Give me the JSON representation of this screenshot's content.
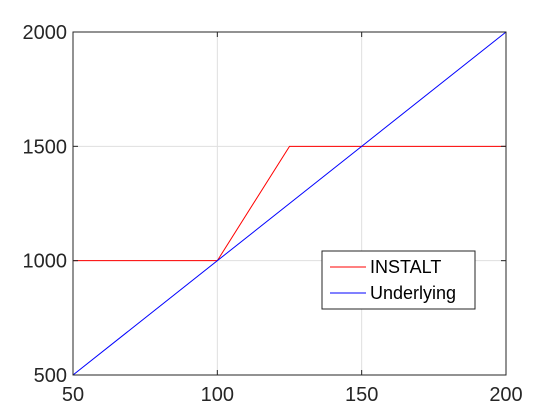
{
  "chart_data": {
    "type": "line",
    "title": "",
    "xlabel": "",
    "ylabel": "",
    "xlim": [
      50,
      200
    ],
    "ylim": [
      500,
      2000
    ],
    "xticks": [
      "50",
      "100",
      "150",
      "200"
    ],
    "yticks": [
      "500",
      "1000",
      "1500",
      "2000"
    ],
    "grid": true,
    "legend_position": "lower-right",
    "series": [
      {
        "name": "INSTALT",
        "color": "#ff0000",
        "x": [
          50,
          100,
          125,
          200
        ],
        "y": [
          1000,
          1000,
          1500,
          1500
        ]
      },
      {
        "name": "Underlying",
        "color": "#0000ff",
        "x": [
          50,
          200
        ],
        "y": [
          500,
          2000
        ]
      }
    ]
  }
}
